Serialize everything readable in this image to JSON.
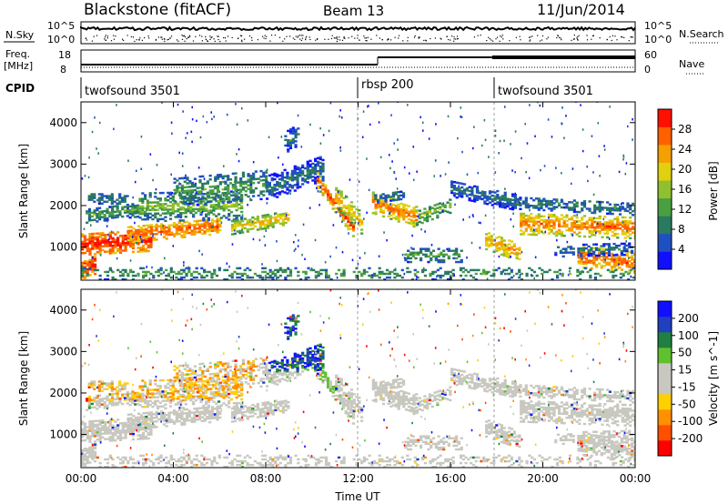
{
  "header": {
    "station": "Blackstone (fitACF)",
    "beam": "Beam 13",
    "date": "11/Jun/2014"
  },
  "panels": {
    "nsky_label": "N.Sky",
    "nsky_ticks": [
      "10^5",
      "10^0"
    ],
    "nsearch_label": "N.Search",
    "nsearch_ticks": [
      "10^5",
      "10^0"
    ],
    "freq_label_1": "Freq.",
    "freq_label_2": "[MHz]",
    "freq_ticks": [
      "18",
      "8"
    ],
    "nave_label": "Nave",
    "nave_ticks": [
      "60",
      "0"
    ],
    "cpid_label": "CPID",
    "cpid_segments": [
      {
        "label": "twofsound 3501",
        "start_hour": 0
      },
      {
        "label": "rbsp 200",
        "start_hour": 12
      },
      {
        "label": "twofsound 3501",
        "start_hour": 18
      }
    ]
  },
  "colors": {
    "power_scale": [
      "#1010ff",
      "#2050c0",
      "#2a7a60",
      "#4aa040",
      "#90c030",
      "#e0d010",
      "#f5a000",
      "#ff6000",
      "#ff1000"
    ],
    "velocity_scale": [
      "#ff0000",
      "#ff5000",
      "#ff9000",
      "#ffd000",
      "#c8c8c0",
      "#c8c8c0",
      "#60c030",
      "#208040",
      "#2040c0",
      "#1010ff"
    ]
  },
  "chart_data": [
    {
      "type": "heatmap",
      "name": "power",
      "ylabel": "Slant Range [km]",
      "yticks": [
        "1000",
        "2000",
        "3000",
        "4000"
      ],
      "ylim": [
        200,
        4500
      ],
      "x": [
        "00:00",
        "04:00",
        "08:00",
        "12:00",
        "16:00",
        "20:00",
        "00:00"
      ],
      "colorbar": {
        "label": "Power [dB]",
        "ticks": [
          "4",
          "8",
          "12",
          "16",
          "20",
          "24",
          "28"
        ]
      }
    },
    {
      "type": "heatmap",
      "name": "velocity",
      "ylabel": "Slant Range [km]",
      "yticks": [
        "1000",
        "2000",
        "3000",
        "4000"
      ],
      "ylim": [
        200,
        4500
      ],
      "x": [
        "00:00",
        "04:00",
        "08:00",
        "12:00",
        "16:00",
        "20:00",
        "00:00"
      ],
      "xlabel": "Time UT",
      "colorbar": {
        "label": "Velocity [m s^-1]",
        "ticks": [
          "200",
          "100",
          "50",
          "15",
          "-15",
          "-50",
          "-100",
          "-200"
        ]
      }
    }
  ]
}
